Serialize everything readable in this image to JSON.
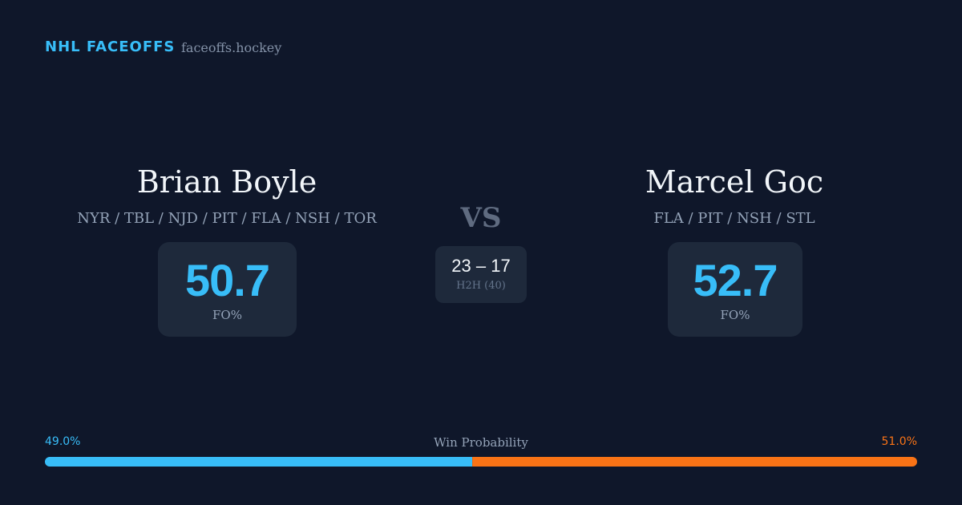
{
  "header": {
    "title": "NHL FACEOFFS",
    "site": "faceoffs.hockey"
  },
  "players": [
    {
      "name": "Brian Boyle",
      "teams": "NYR / TBL / NJD / PIT / FLA / NSH / TOR",
      "fo_pct": "50.7",
      "fo_label": "FO%"
    },
    {
      "name": "Marcel Goc",
      "teams": "FLA / PIT / NSH / STL",
      "fo_pct": "52.7",
      "fo_label": "FO%"
    }
  ],
  "vs": "VS",
  "h2h": {
    "score": "23 – 17",
    "label": "H2H (40)"
  },
  "win_probability": {
    "label": "Win Probability",
    "values": [
      49.0,
      51.0
    ],
    "value_labels": [
      "49.0%",
      "51.0%"
    ],
    "colors": [
      "#38bdf8",
      "#f97316"
    ]
  }
}
